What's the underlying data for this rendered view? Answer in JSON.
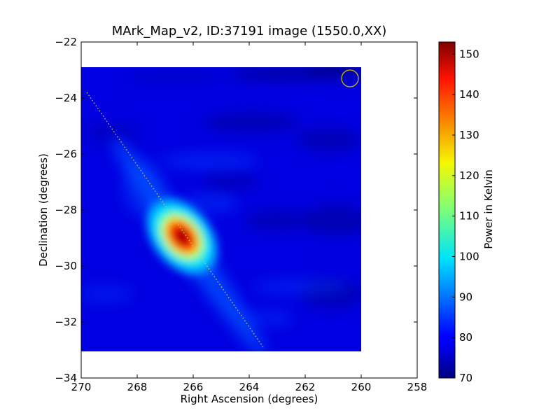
{
  "chart_data": {
    "type": "heatmap",
    "title": "MArk_Map_v2, ID:37191 image (1550.0,XX)",
    "xlabel": "Right Ascension (degrees)",
    "ylabel": "Declination (degrees)",
    "xlim": [
      270,
      258
    ],
    "ylim": [
      -34,
      -22
    ],
    "xticks": [
      270,
      268,
      266,
      264,
      262,
      260,
      258
    ],
    "xtick_labels": [
      "270",
      "268",
      "266",
      "264",
      "262",
      "260",
      "258"
    ],
    "yticks": [
      -22,
      -24,
      -26,
      -28,
      -30,
      -32,
      -34
    ],
    "ytick_labels": [
      "−22",
      "−24",
      "−26",
      "−28",
      "−30",
      "−32",
      "−34"
    ],
    "image_extent": {
      "ra": [
        270,
        260
      ],
      "dec": [
        -33.05,
        -22.9
      ]
    },
    "colormap": "jet",
    "colorbar": {
      "label": "Power in Kelvin",
      "min": 70,
      "max": 153,
      "ticks": [
        70,
        80,
        90,
        100,
        110,
        120,
        130,
        140,
        150
      ],
      "tick_labels": [
        "70",
        "80",
        "90",
        "100",
        "110",
        "120",
        "130",
        "140",
        "150"
      ]
    },
    "background_level": 78,
    "peak": {
      "ra": 266.4,
      "dec": -28.95,
      "value": 153
    },
    "galactic_plane_line": {
      "start": {
        "ra": 269.8,
        "dec": -23.8
      },
      "end": {
        "ra": 263.5,
        "dec": -32.9
      },
      "color": "#c8c864"
    },
    "beam_circle": {
      "ra": 260.4,
      "dec": -23.3,
      "color": "#c8b400"
    },
    "grid": false
  }
}
